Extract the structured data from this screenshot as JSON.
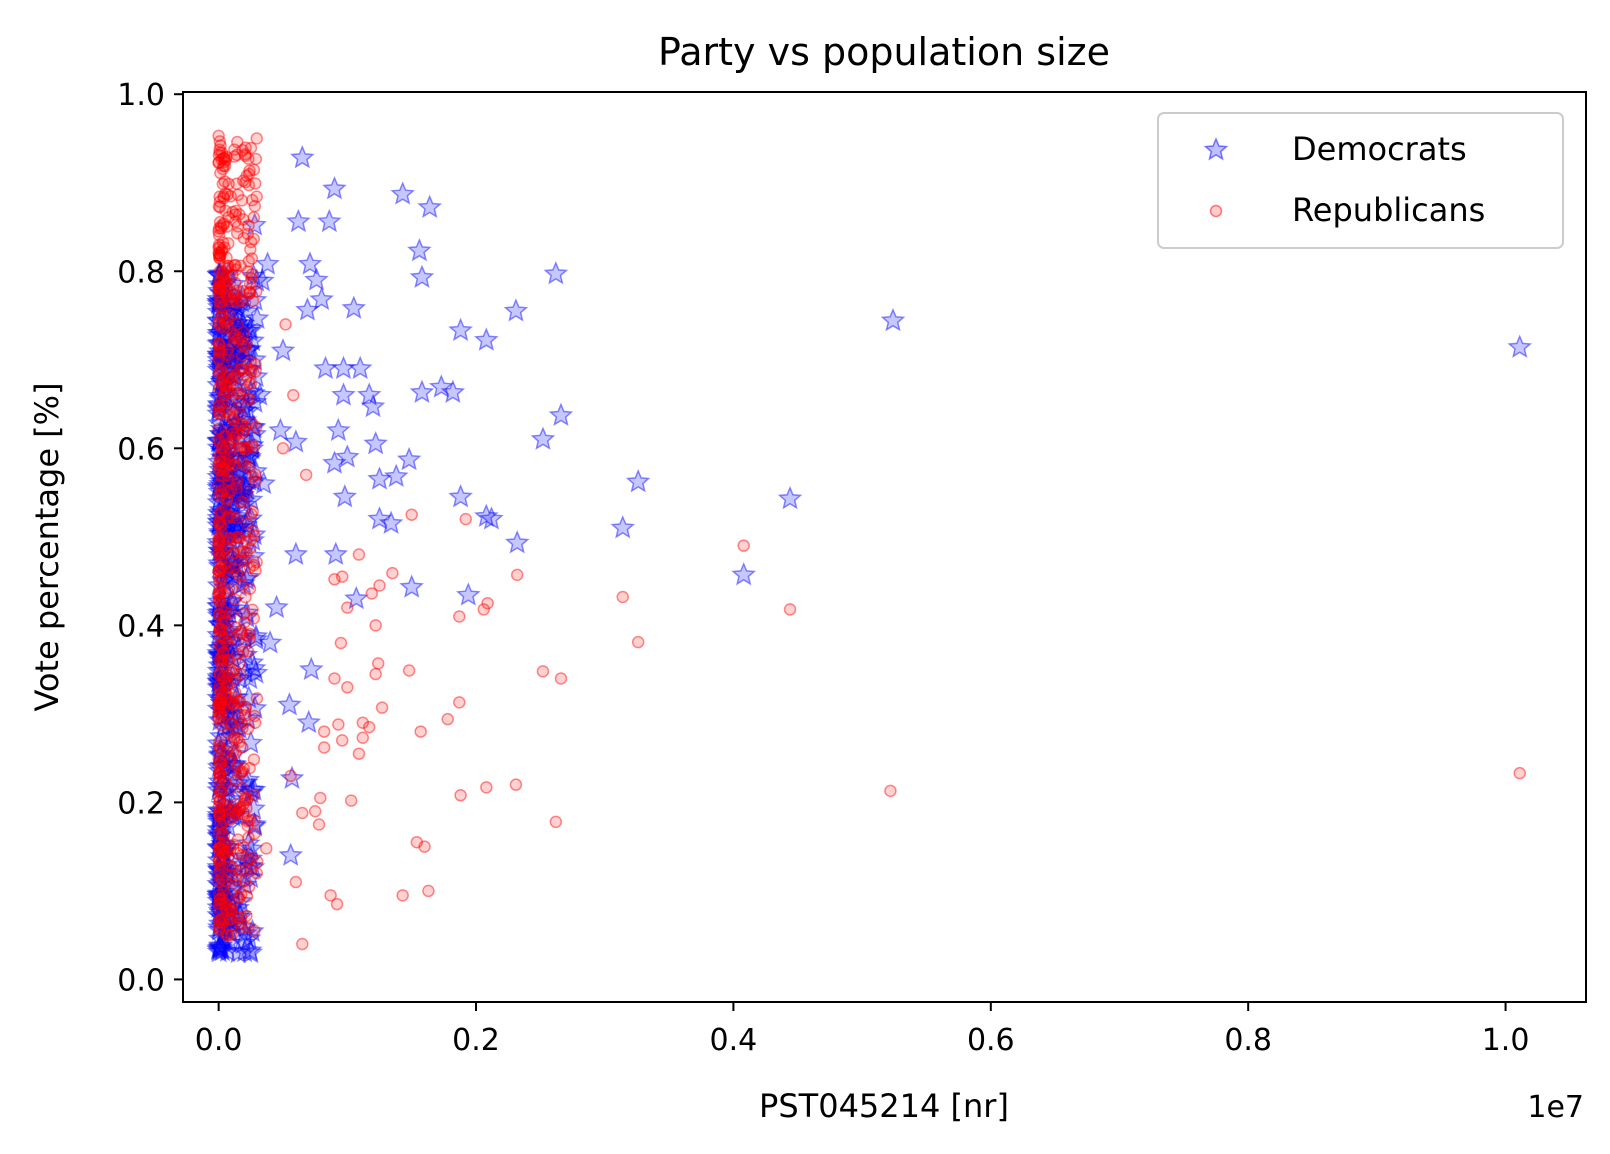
{
  "chart_data": {
    "type": "scatter",
    "title": "Party vs population size",
    "xlabel": "PST045214 [nr]",
    "ylabel": "Vote percentage [%]",
    "x_offset_label": "1e7",
    "xlim": [
      -0.0277,
      1.0625
    ],
    "ylim": [
      -0.0255,
      1.0025
    ],
    "x_ticks": [
      0.0,
      0.2,
      0.4,
      0.6,
      0.8,
      1.0
    ],
    "x_tick_labels": [
      "0.0",
      "0.2",
      "0.4",
      "0.6",
      "0.8",
      "1.0"
    ],
    "y_ticks": [
      0.0,
      0.2,
      0.4,
      0.6,
      0.8,
      1.0
    ],
    "y_tick_labels": [
      "0.0",
      "0.2",
      "0.4",
      "0.6",
      "0.8",
      "1.0"
    ],
    "grid": false,
    "legend_position": "top-right",
    "series": [
      {
        "name": "Democrats",
        "marker": "star",
        "color": "#0000ff",
        "points": [
          [
            0.065,
            0.928
          ],
          [
            0.09,
            0.893
          ],
          [
            0.143,
            0.887
          ],
          [
            0.164,
            0.872
          ],
          [
            0.028,
            0.852
          ],
          [
            0.062,
            0.856
          ],
          [
            0.086,
            0.856
          ],
          [
            0.156,
            0.823
          ],
          [
            0.071,
            0.808
          ],
          [
            0.158,
            0.793
          ],
          [
            0.262,
            0.797
          ],
          [
            0.038,
            0.808
          ],
          [
            0.076,
            0.79
          ],
          [
            0.069,
            0.756
          ],
          [
            0.08,
            0.768
          ],
          [
            0.105,
            0.758
          ],
          [
            0.034,
            0.789
          ],
          [
            0.231,
            0.755
          ],
          [
            0.188,
            0.733
          ],
          [
            0.208,
            0.722
          ],
          [
            0.524,
            0.744
          ],
          [
            1.011,
            0.714
          ],
          [
            0.05,
            0.71
          ],
          [
            0.083,
            0.69
          ],
          [
            0.097,
            0.69
          ],
          [
            0.11,
            0.69
          ],
          [
            0.173,
            0.669
          ],
          [
            0.182,
            0.663
          ],
          [
            0.158,
            0.663
          ],
          [
            0.117,
            0.66
          ],
          [
            0.097,
            0.66
          ],
          [
            0.266,
            0.637
          ],
          [
            0.252,
            0.61
          ],
          [
            0.12,
            0.647
          ],
          [
            0.093,
            0.62
          ],
          [
            0.122,
            0.605
          ],
          [
            0.06,
            0.607
          ],
          [
            0.138,
            0.568
          ],
          [
            0.148,
            0.587
          ],
          [
            0.326,
            0.562
          ],
          [
            0.125,
            0.565
          ],
          [
            0.09,
            0.583
          ],
          [
            0.1,
            0.59
          ],
          [
            0.188,
            0.545
          ],
          [
            0.444,
            0.543
          ],
          [
            0.098,
            0.545
          ],
          [
            0.125,
            0.52
          ],
          [
            0.134,
            0.515
          ],
          [
            0.208,
            0.523
          ],
          [
            0.212,
            0.52
          ],
          [
            0.314,
            0.51
          ],
          [
            0.232,
            0.493
          ],
          [
            0.091,
            0.48
          ],
          [
            0.06,
            0.48
          ],
          [
            0.408,
            0.457
          ],
          [
            0.15,
            0.443
          ],
          [
            0.194,
            0.434
          ],
          [
            0.107,
            0.43
          ],
          [
            0.057,
            0.227
          ],
          [
            0.056,
            0.14
          ],
          [
            0.026,
            0.214
          ],
          [
            0.07,
            0.29
          ],
          [
            0.055,
            0.31
          ],
          [
            0.04,
            0.38
          ],
          [
            0.045,
            0.42
          ],
          [
            0.072,
            0.35
          ],
          [
            0.035,
            0.56
          ],
          [
            0.048,
            0.62
          ],
          [
            0.028,
            0.7
          ],
          [
            0.032,
            0.66
          ]
        ],
        "dense_band": {
          "x_range": [
            0.0,
            0.03
          ],
          "y_range": [
            0.03,
            0.8
          ]
        }
      },
      {
        "name": "Republicans",
        "marker": "circle",
        "color": "#ff0000",
        "points": [
          [
            0.0,
            0.953
          ],
          [
            0.052,
            0.74
          ],
          [
            0.058,
            0.66
          ],
          [
            0.05,
            0.6
          ],
          [
            0.068,
            0.57
          ],
          [
            0.15,
            0.525
          ],
          [
            0.192,
            0.52
          ],
          [
            0.109,
            0.48
          ],
          [
            0.135,
            0.459
          ],
          [
            0.232,
            0.457
          ],
          [
            0.09,
            0.452
          ],
          [
            0.096,
            0.455
          ],
          [
            0.125,
            0.445
          ],
          [
            0.119,
            0.436
          ],
          [
            0.314,
            0.432
          ],
          [
            0.209,
            0.425
          ],
          [
            0.206,
            0.418
          ],
          [
            0.187,
            0.41
          ],
          [
            0.408,
            0.49
          ],
          [
            0.444,
            0.418
          ],
          [
            0.1,
            0.42
          ],
          [
            0.122,
            0.4
          ],
          [
            0.095,
            0.38
          ],
          [
            0.326,
            0.381
          ],
          [
            0.124,
            0.357
          ],
          [
            0.122,
            0.345
          ],
          [
            0.148,
            0.349
          ],
          [
            0.252,
            0.348
          ],
          [
            0.266,
            0.34
          ],
          [
            0.1,
            0.33
          ],
          [
            0.09,
            0.34
          ],
          [
            0.187,
            0.313
          ],
          [
            0.127,
            0.307
          ],
          [
            0.178,
            0.294
          ],
          [
            0.112,
            0.29
          ],
          [
            0.117,
            0.285
          ],
          [
            0.157,
            0.28
          ],
          [
            0.112,
            0.273
          ],
          [
            0.082,
            0.28
          ],
          [
            0.093,
            0.288
          ],
          [
            0.096,
            0.27
          ],
          [
            0.082,
            0.262
          ],
          [
            0.109,
            0.255
          ],
          [
            0.056,
            0.23
          ],
          [
            0.522,
            0.213
          ],
          [
            1.011,
            0.233
          ],
          [
            0.188,
            0.208
          ],
          [
            0.208,
            0.217
          ],
          [
            0.231,
            0.22
          ],
          [
            0.103,
            0.202
          ],
          [
            0.079,
            0.205
          ],
          [
            0.075,
            0.19
          ],
          [
            0.065,
            0.188
          ],
          [
            0.078,
            0.175
          ],
          [
            0.262,
            0.178
          ],
          [
            0.154,
            0.155
          ],
          [
            0.16,
            0.15
          ],
          [
            0.037,
            0.148
          ],
          [
            0.03,
            0.133
          ],
          [
            0.06,
            0.11
          ],
          [
            0.087,
            0.095
          ],
          [
            0.092,
            0.085
          ],
          [
            0.143,
            0.095
          ],
          [
            0.163,
            0.1
          ],
          [
            0.065,
            0.04
          ]
        ],
        "dense_band": {
          "x_range": [
            0.0,
            0.03
          ],
          "y_range": [
            0.05,
            0.95
          ]
        }
      }
    ]
  }
}
